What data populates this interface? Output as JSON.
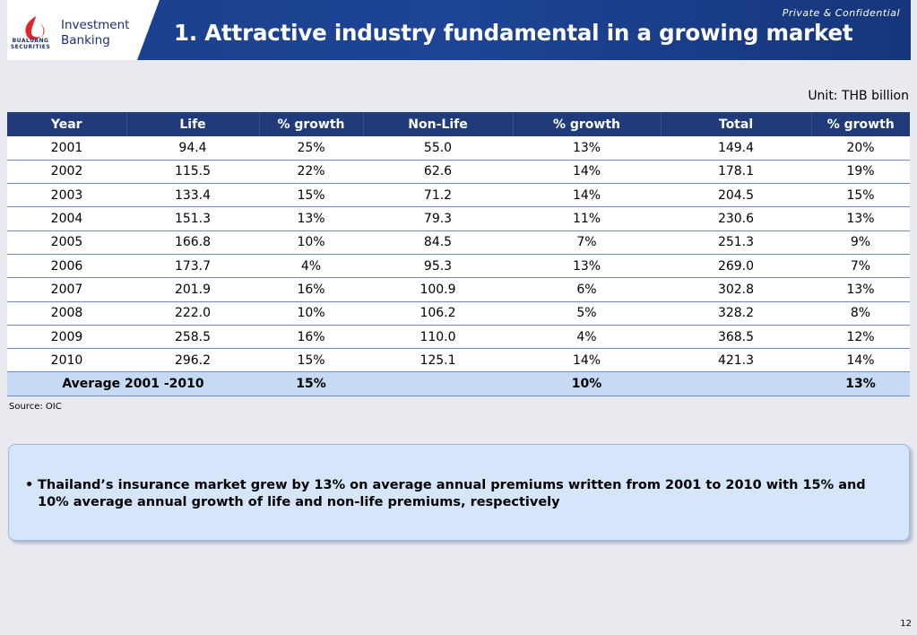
{
  "header": {
    "logo_text": "BUALUANG SECURITIES",
    "brand_line1": "Investment",
    "brand_line2": "Banking",
    "title": "1. Attractive industry fundamental in a growing market",
    "confidential": "Private & Confidential",
    "colors": {
      "banner": "#1d4496",
      "logo_red": "#e0262b",
      "logo_navy": "#1b2f78"
    }
  },
  "unit_label": "Unit: THB billion",
  "table": {
    "columns": [
      "Year",
      "Life",
      "% growth",
      "Non-Life",
      "% growth",
      "Total",
      "% growth"
    ],
    "rows": [
      [
        "2001",
        "94.4",
        "25%",
        "55.0",
        "13%",
        "149.4",
        "20%"
      ],
      [
        "2002",
        "115.5",
        "22%",
        "62.6",
        "14%",
        "178.1",
        "19%"
      ],
      [
        "2003",
        "133.4",
        "15%",
        "71.2",
        "14%",
        "204.5",
        "15%"
      ],
      [
        "2004",
        "151.3",
        "13%",
        "79.3",
        "11%",
        "230.6",
        "13%"
      ],
      [
        "2005",
        "166.8",
        "10%",
        "84.5",
        "7%",
        "251.3",
        "9%"
      ],
      [
        "2006",
        "173.7",
        "4%",
        "95.3",
        "13%",
        "269.0",
        "7%"
      ],
      [
        "2007",
        "201.9",
        "16%",
        "100.9",
        "6%",
        "302.8",
        "13%"
      ],
      [
        "2008",
        "222.0",
        "10%",
        "106.2",
        "5%",
        "328.2",
        "8%"
      ],
      [
        "2009",
        "258.5",
        "16%",
        "110.0",
        "4%",
        "368.5",
        "12%"
      ],
      [
        "2010",
        "296.2",
        "15%",
        "125.1",
        "14%",
        "421.3",
        "14%"
      ]
    ],
    "average": {
      "label": "Average 2001 -2010",
      "life_growth": "15%",
      "nonlife_growth": "10%",
      "total_growth": "13%"
    }
  },
  "source": "Source: OIC",
  "callout": {
    "bullet_symbol": "•",
    "text": "Thailand’s insurance market grew by 13% on average annual premiums written from 2001 to 2010 with 15% and 10% average annual growth of life and non-life premiums, respectively"
  },
  "page_number": "12"
}
